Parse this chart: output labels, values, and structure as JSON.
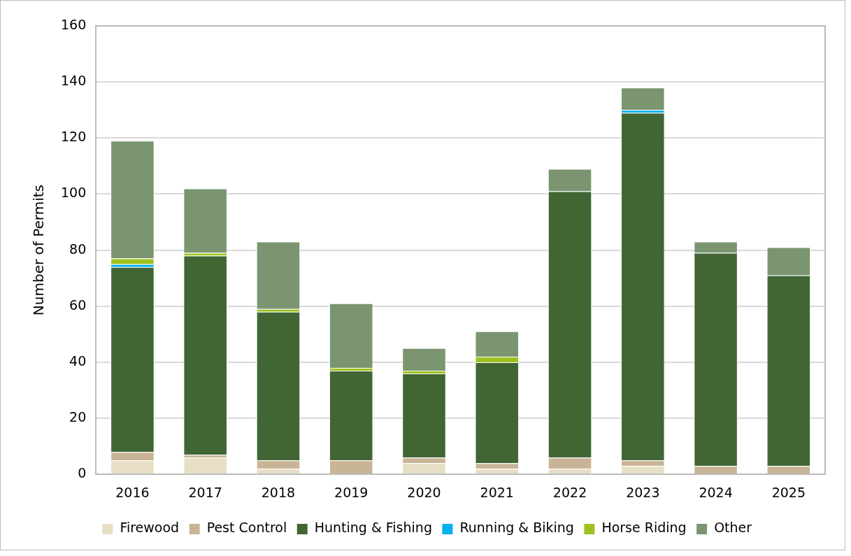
{
  "chart_data": {
    "type": "bar",
    "stacked": true,
    "ylabel": "Number of Permits",
    "categories": [
      "2016",
      "2017",
      "2018",
      "2019",
      "2020",
      "2021",
      "2022",
      "2023",
      "2024",
      "2025"
    ],
    "series": [
      {
        "name": "Firewood",
        "color": "#e6dfc5",
        "values": [
          5,
          6,
          2,
          0,
          4,
          2,
          2,
          3,
          0,
          0
        ]
      },
      {
        "name": "Pest Control",
        "color": "#c9b497",
        "values": [
          3,
          1,
          3,
          5,
          2,
          2,
          4,
          2,
          3,
          3
        ]
      },
      {
        "name": "Hunting & Fishing",
        "color": "#416634",
        "values": [
          66,
          71,
          53,
          32,
          30,
          36,
          95,
          124,
          76,
          68
        ]
      },
      {
        "name": "Running & Biking",
        "color": "#00b0f0",
        "values": [
          1,
          0,
          0,
          0,
          0,
          0,
          0,
          1,
          0,
          0
        ]
      },
      {
        "name": "Horse Riding",
        "color": "#9dc21f",
        "values": [
          2,
          1,
          1,
          1,
          1,
          2,
          0,
          0,
          0,
          0
        ]
      },
      {
        "name": "Other",
        "color": "#7a9570",
        "values": [
          42,
          23,
          24,
          23,
          8,
          9,
          8,
          8,
          4,
          10
        ]
      }
    ],
    "ylim": [
      0,
      160
    ],
    "yticks": [
      0,
      20,
      40,
      60,
      80,
      100,
      120,
      140,
      160
    ],
    "grid": "y",
    "legend": "bottom"
  }
}
